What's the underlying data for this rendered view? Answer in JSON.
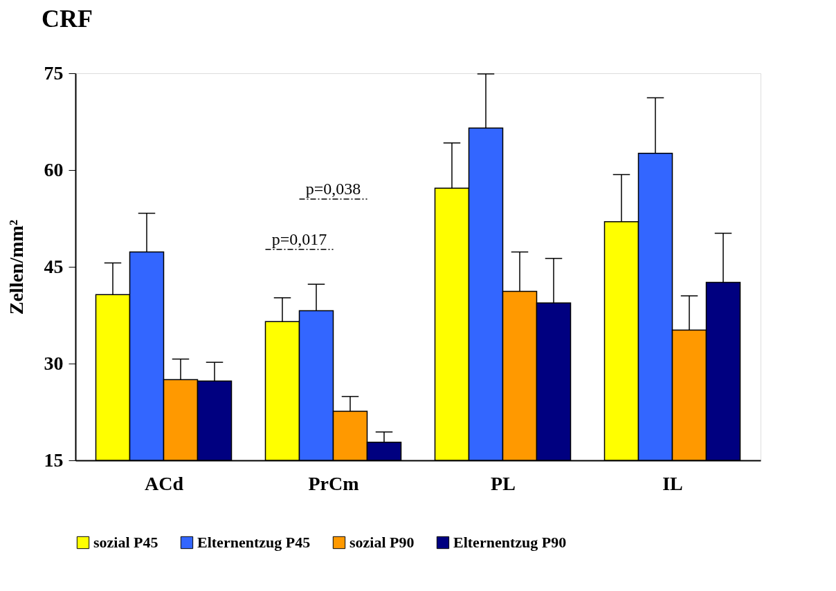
{
  "chart_data": {
    "type": "bar",
    "title": "CRF",
    "ylabel": "Zellen/mm²",
    "categories": [
      "ACd",
      "PrCm",
      "PL",
      "IL"
    ],
    "series": [
      {
        "name": "sozial P45",
        "color": "#ffff00",
        "values": [
          40.7,
          36.5,
          57.2,
          52.0
        ],
        "errors": [
          [
            40.7,
            45.6
          ],
          [
            36.5,
            40.2
          ],
          [
            57.2,
            64.2
          ],
          [
            52.0,
            59.3
          ]
        ]
      },
      {
        "name": "Elternentzug P45",
        "color": "#3366ff",
        "values": [
          47.3,
          38.2,
          66.5,
          62.6
        ],
        "errors": [
          [
            47.3,
            53.3
          ],
          [
            38.2,
            42.3
          ],
          [
            66.5,
            74.9
          ],
          [
            62.6,
            71.2
          ]
        ]
      },
      {
        "name": "sozial P90",
        "color": "#ff9900",
        "values": [
          27.5,
          22.6,
          41.2,
          35.2
        ],
        "errors": [
          [
            27.5,
            30.7
          ],
          [
            22.6,
            24.9
          ],
          [
            41.2,
            47.3
          ],
          [
            35.2,
            40.5
          ]
        ]
      },
      {
        "name": "Elternentzug P90",
        "color": "#000080",
        "values": [
          27.3,
          17.8,
          39.4,
          42.6
        ],
        "errors": [
          [
            27.3,
            30.2
          ],
          [
            17.8,
            19.4
          ],
          [
            39.4,
            46.3
          ],
          [
            42.6,
            50.2
          ]
        ]
      }
    ],
    "annotations": [
      "p=0,017",
      "p=0,038"
    ],
    "ylim": [
      15,
      75
    ],
    "yticks": [
      15,
      30,
      45,
      60,
      75
    ],
    "grid": false,
    "legend": "bottom"
  }
}
